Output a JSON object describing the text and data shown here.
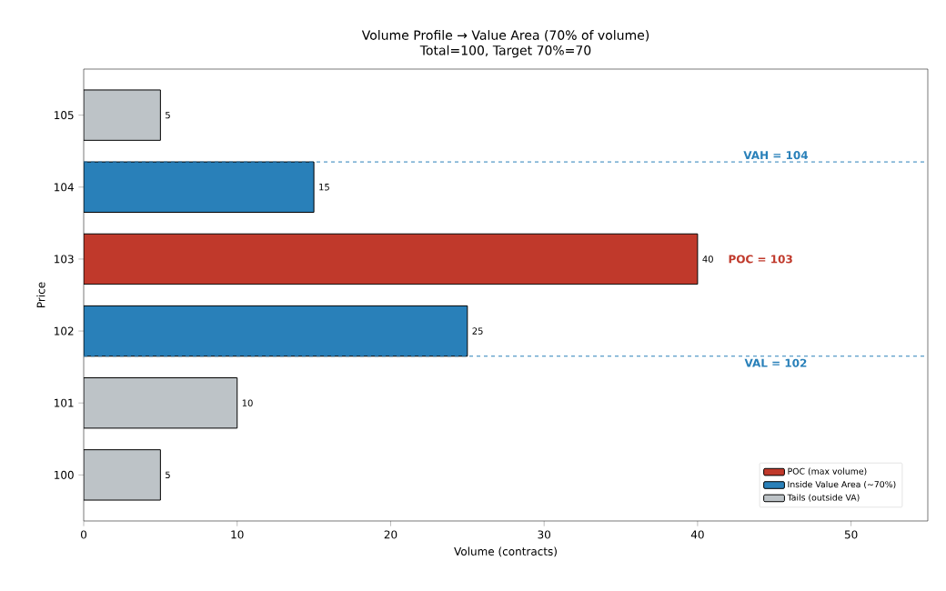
{
  "chart_data": {
    "type": "bar",
    "orientation": "horizontal",
    "title": "Volume Profile → Value Area (70% of volume)",
    "subtitle": "Total=100, Target 70%=70",
    "xlabel": "Volume (contracts)",
    "ylabel": "Price",
    "categories": [
      "105",
      "104",
      "103",
      "102",
      "101",
      "100"
    ],
    "series": [
      {
        "name": "POC (max volume)",
        "color": "#c0392b",
        "values": [
          null,
          null,
          40,
          null,
          null,
          null
        ]
      },
      {
        "name": "Inside Value Area (~70%)",
        "color": "#2980b9",
        "values": [
          null,
          15,
          null,
          25,
          null,
          null
        ]
      },
      {
        "name": "Tails (outside VA)",
        "color": "#bdc3c7",
        "values": [
          5,
          null,
          null,
          null,
          10,
          5
        ]
      }
    ],
    "xlim": [
      0,
      55
    ],
    "xticks": [
      0,
      10,
      20,
      30,
      40,
      50
    ],
    "data_labels": true,
    "legend": "bottom right",
    "ref_lines": [
      {
        "axis": "y",
        "value": "104",
        "label": "VAH = 104",
        "color": "#2980b9",
        "line_style": "dashed"
      },
      {
        "axis": "y",
        "value": "102",
        "label": "VAL = 102",
        "color": "#2980b9",
        "line_style": "dashed"
      }
    ],
    "annotations": [
      {
        "text": "POC = 103",
        "x": 40,
        "y": "103"
      }
    ]
  }
}
